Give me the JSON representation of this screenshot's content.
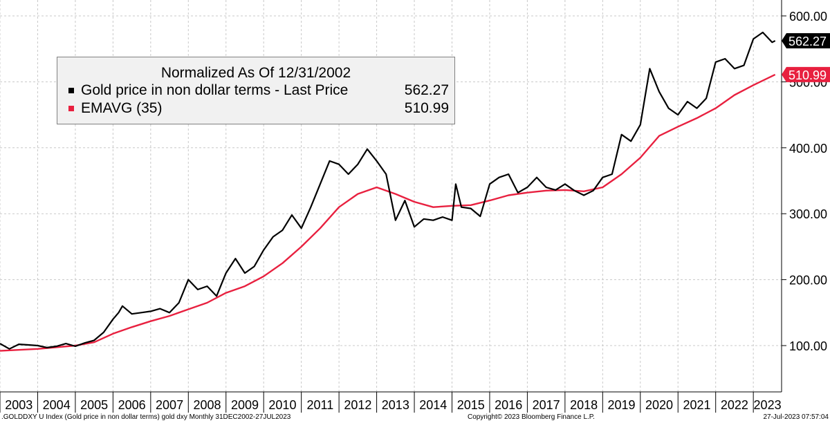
{
  "legend": {
    "title": "Normalized As Of 12/31/2002",
    "series": [
      {
        "name": "Gold price in non dollar terms - Last Price",
        "value": "562.27",
        "color": "#000000"
      },
      {
        "name": "EMAVG (35)",
        "value": "510.99",
        "color": "#e8203f"
      }
    ]
  },
  "footer": {
    "left": ".GOLDDXY U Index (Gold price in non dollar terms) gold dxy  Monthly 31DEC2002-27JUL2023",
    "center": "Copyright© 2023 Bloomberg Finance L.P.",
    "right": "27-Jul-2023 07:57:04"
  },
  "chart_data": {
    "type": "line",
    "x_labels": [
      "2003",
      "2004",
      "2005",
      "2006",
      "2007",
      "2008",
      "2009",
      "2010",
      "2011",
      "2012",
      "2013",
      "2014",
      "2015",
      "2016",
      "2017",
      "2018",
      "2019",
      "2020",
      "2021",
      "2022",
      "2023"
    ],
    "yticks": [
      "100.00",
      "200.00",
      "300.00",
      "400.00",
      "500.00",
      "600.00"
    ],
    "ylim": [
      45,
      620
    ],
    "xlim": [
      2003.0,
      2023.75
    ],
    "grid": true,
    "last_value_labels": [
      {
        "text": "562.27",
        "value": 562.27,
        "bg": "#000000",
        "fg": "#ffffff"
      },
      {
        "text": "510.99",
        "value": 510.99,
        "bg": "#e8203f",
        "fg": "#ffffff"
      }
    ],
    "series": [
      {
        "name": "Gold price in non dollar terms - Last Price",
        "color": "#000000",
        "points": [
          [
            2003.0,
            103
          ],
          [
            2003.25,
            95
          ],
          [
            2003.5,
            102
          ],
          [
            2003.75,
            101
          ],
          [
            2004.0,
            100
          ],
          [
            2004.25,
            97
          ],
          [
            2004.5,
            99
          ],
          [
            2004.75,
            103
          ],
          [
            2005.0,
            99
          ],
          [
            2005.25,
            104
          ],
          [
            2005.5,
            108
          ],
          [
            2005.75,
            120
          ],
          [
            2006.0,
            140
          ],
          [
            2006.15,
            150
          ],
          [
            2006.25,
            160
          ],
          [
            2006.5,
            148
          ],
          [
            2006.75,
            150
          ],
          [
            2007.0,
            152
          ],
          [
            2007.25,
            156
          ],
          [
            2007.5,
            150
          ],
          [
            2007.75,
            165
          ],
          [
            2008.0,
            200
          ],
          [
            2008.25,
            185
          ],
          [
            2008.5,
            190
          ],
          [
            2008.75,
            175
          ],
          [
            2009.0,
            210
          ],
          [
            2009.25,
            232
          ],
          [
            2009.5,
            210
          ],
          [
            2009.75,
            220
          ],
          [
            2010.0,
            245
          ],
          [
            2010.25,
            265
          ],
          [
            2010.5,
            275
          ],
          [
            2010.75,
            298
          ],
          [
            2011.0,
            278
          ],
          [
            2011.25,
            310
          ],
          [
            2011.5,
            345
          ],
          [
            2011.75,
            380
          ],
          [
            2012.0,
            375
          ],
          [
            2012.25,
            360
          ],
          [
            2012.5,
            375
          ],
          [
            2012.75,
            398
          ],
          [
            2013.0,
            380
          ],
          [
            2013.25,
            360
          ],
          [
            2013.5,
            290
          ],
          [
            2013.75,
            320
          ],
          [
            2014.0,
            280
          ],
          [
            2014.25,
            292
          ],
          [
            2014.5,
            290
          ],
          [
            2014.75,
            295
          ],
          [
            2015.0,
            290
          ],
          [
            2015.1,
            345
          ],
          [
            2015.25,
            310
          ],
          [
            2015.5,
            308
          ],
          [
            2015.75,
            296
          ],
          [
            2016.0,
            345
          ],
          [
            2016.25,
            355
          ],
          [
            2016.5,
            360
          ],
          [
            2016.75,
            332
          ],
          [
            2017.0,
            340
          ],
          [
            2017.25,
            355
          ],
          [
            2017.5,
            340
          ],
          [
            2017.75,
            336
          ],
          [
            2018.0,
            345
          ],
          [
            2018.25,
            335
          ],
          [
            2018.5,
            328
          ],
          [
            2018.75,
            335
          ],
          [
            2019.0,
            355
          ],
          [
            2019.25,
            360
          ],
          [
            2019.5,
            420
          ],
          [
            2019.75,
            410
          ],
          [
            2020.0,
            435
          ],
          [
            2020.25,
            520
          ],
          [
            2020.5,
            485
          ],
          [
            2020.75,
            460
          ],
          [
            2021.0,
            450
          ],
          [
            2021.25,
            470
          ],
          [
            2021.5,
            460
          ],
          [
            2021.75,
            475
          ],
          [
            2022.0,
            530
          ],
          [
            2022.25,
            535
          ],
          [
            2022.5,
            520
          ],
          [
            2022.75,
            525
          ],
          [
            2023.0,
            565
          ],
          [
            2023.25,
            575
          ],
          [
            2023.5,
            560
          ],
          [
            2023.58,
            562.27
          ]
        ]
      },
      {
        "name": "EMAVG (35)",
        "color": "#e8203f",
        "points": [
          [
            2003.0,
            92
          ],
          [
            2004.0,
            95
          ],
          [
            2005.0,
            100
          ],
          [
            2005.5,
            105
          ],
          [
            2006.0,
            118
          ],
          [
            2006.5,
            128
          ],
          [
            2007.0,
            137
          ],
          [
            2007.5,
            145
          ],
          [
            2008.0,
            155
          ],
          [
            2008.5,
            165
          ],
          [
            2009.0,
            180
          ],
          [
            2009.5,
            190
          ],
          [
            2010.0,
            205
          ],
          [
            2010.5,
            225
          ],
          [
            2011.0,
            250
          ],
          [
            2011.5,
            278
          ],
          [
            2012.0,
            310
          ],
          [
            2012.5,
            330
          ],
          [
            2013.0,
            340
          ],
          [
            2013.5,
            330
          ],
          [
            2014.0,
            318
          ],
          [
            2014.5,
            310
          ],
          [
            2015.0,
            312
          ],
          [
            2015.5,
            313
          ],
          [
            2016.0,
            320
          ],
          [
            2016.5,
            328
          ],
          [
            2017.0,
            332
          ],
          [
            2017.5,
            335
          ],
          [
            2018.0,
            336
          ],
          [
            2018.5,
            334
          ],
          [
            2019.0,
            340
          ],
          [
            2019.5,
            360
          ],
          [
            2020.0,
            385
          ],
          [
            2020.5,
            418
          ],
          [
            2021.0,
            432
          ],
          [
            2021.5,
            445
          ],
          [
            2022.0,
            460
          ],
          [
            2022.5,
            480
          ],
          [
            2023.0,
            495
          ],
          [
            2023.58,
            510.99
          ]
        ]
      }
    ]
  }
}
